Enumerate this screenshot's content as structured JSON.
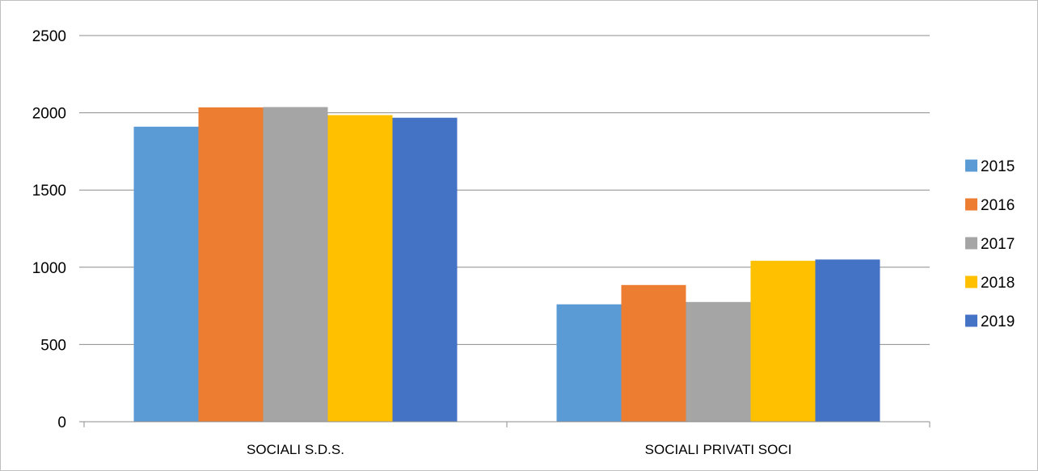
{
  "chart_data": {
    "type": "bar",
    "categories": [
      "SOCIALI S.D.S.",
      "SOCIALI PRIVATI SOCI"
    ],
    "series": [
      {
        "name": "2015",
        "color": "#5b9bd5",
        "values": [
          1910,
          760
        ]
      },
      {
        "name": "2016",
        "color": "#ed7d31",
        "values": [
          2035,
          885
        ]
      },
      {
        "name": "2017",
        "color": "#a5a5a5",
        "values": [
          2037,
          775
        ]
      },
      {
        "name": "2018",
        "color": "#ffc000",
        "values": [
          1985,
          1042
        ]
      },
      {
        "name": "2019",
        "color": "#4472c4",
        "values": [
          1968,
          1050
        ]
      }
    ],
    "ylim": [
      0,
      2500
    ],
    "yticks": [
      0,
      500,
      1000,
      1500,
      2000,
      2500
    ],
    "grid": true,
    "legend_position": "right"
  }
}
